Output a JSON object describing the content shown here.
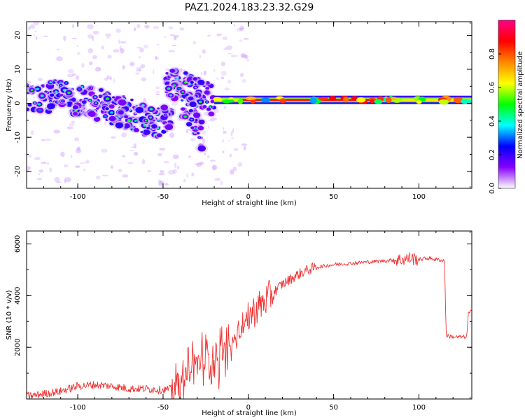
{
  "figure": {
    "title": "PAZ1.2024.183.23.32.G29"
  },
  "chart_data": [
    {
      "type": "heatmap",
      "xlabel": "Height of straight line (km)",
      "ylabel": "Frequency (Hz)",
      "xlim": [
        -130,
        131
      ],
      "ylim": [
        -25,
        24
      ],
      "x_ticks": [
        -100,
        -50,
        0,
        50,
        100
      ],
      "y_ticks": [
        -20,
        -10,
        0,
        10,
        20
      ],
      "grid": false,
      "colorbar": {
        "label": "Normalized spectral amplitude",
        "range": [
          0,
          1
        ],
        "ticks": [
          0.0,
          0.2,
          0.4,
          0.6,
          0.8
        ],
        "colormap": [
          "#ffffff",
          "#8800ff",
          "#0000ff",
          "#00ffff",
          "#00ff00",
          "#ffff00",
          "#ff8800",
          "#ff0000",
          "#ff0088"
        ]
      },
      "ridges": [
        {
          "x": [
            -130,
            -110,
            -90,
            -70,
            -55,
            -45
          ],
          "y": [
            1.5,
            2,
            0,
            -3,
            -6,
            -5
          ]
        },
        {
          "x": [
            -48,
            -40,
            -32,
            -25,
            -20
          ],
          "y": [
            6,
            5,
            4,
            2,
            1
          ]
        },
        {
          "x": [
            -40,
            -33,
            -27
          ],
          "y": [
            0,
            -3,
            -10
          ]
        },
        {
          "x": [
            -20,
            0,
            50,
            131
          ],
          "y": [
            1,
            1,
            1,
            1
          ]
        }
      ]
    },
    {
      "type": "line",
      "xlabel": "Height of straight line (km)",
      "ylabel": "SNR (10 * v/v)",
      "xlim": [
        -130,
        131
      ],
      "ylim": [
        0,
        6500
      ],
      "x_ticks": [
        -100,
        -50,
        0,
        50,
        100
      ],
      "y_ticks": [
        2000,
        4000,
        6000
      ],
      "grid": false,
      "color": "#ee3333",
      "series": [
        {
          "x": [
            -130,
            -110,
            -100,
            -90,
            -80,
            -70,
            -60,
            -50,
            -45,
            -40,
            -35,
            -30,
            -25,
            -20,
            -15,
            -10,
            -5,
            0,
            5,
            10,
            15,
            20,
            25,
            30,
            35,
            40,
            45,
            50,
            60,
            70,
            80,
            90,
            95,
            100,
            105,
            110,
            115,
            116,
            120,
            125,
            128,
            129,
            131
          ],
          "y": [
            100,
            300,
            500,
            550,
            500,
            400,
            400,
            350,
            400,
            500,
            900,
            1400,
            1600,
            1600,
            1800,
            2100,
            2600,
            3200,
            3500,
            3800,
            4150,
            4450,
            4650,
            4850,
            5000,
            5100,
            5150,
            5200,
            5250,
            5300,
            5350,
            5400,
            5450,
            5400,
            5450,
            5400,
            5350,
            2450,
            2400,
            2400,
            2400,
            3300,
            3400
          ]
        }
      ]
    }
  ]
}
